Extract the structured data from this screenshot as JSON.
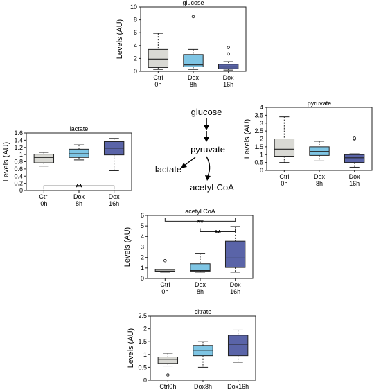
{
  "colors": {
    "ctrl_fill": "#d9d9d4",
    "dox8_fill": "#7ec5e4",
    "dox16_fill": "#5a64a8",
    "stroke": "#222222"
  },
  "pathway": {
    "glucose": "glucose",
    "pyruvate": "pyruvate",
    "lactate": "lactate",
    "acetyl_coa": "acetyl-CoA"
  },
  "chart_data": [
    {
      "id": "glucose",
      "type": "box",
      "title": "glucose",
      "ylabel": "Levels (AU)",
      "ylim": [
        0,
        10
      ],
      "yticks": [
        "0",
        "2",
        "4",
        "6",
        "8",
        "10"
      ],
      "ytick_values": [
        0,
        2,
        4,
        6,
        8,
        10
      ],
      "categories": [
        [
          "Ctrl",
          "0h"
        ],
        [
          "Dox",
          "8h"
        ],
        [
          "Dox",
          "16h"
        ]
      ],
      "boxes": [
        {
          "whislo": 0.3,
          "q1": 0.6,
          "med": 1.9,
          "q3": 3.4,
          "whishi": 5.9,
          "fliers": []
        },
        {
          "whislo": 0.3,
          "q1": 0.7,
          "med": 1.0,
          "q3": 2.6,
          "whishi": 3.4,
          "fliers": [
            8.5
          ]
        },
        {
          "whislo": 0.2,
          "q1": 0.4,
          "med": 0.7,
          "q3": 1.1,
          "whishi": 1.5,
          "fliers": [
            2.7,
            3.7
          ]
        }
      ],
      "significance": []
    },
    {
      "id": "lactate",
      "type": "box",
      "title": "lactate",
      "ylabel": "Levels (AU)",
      "ylim": [
        0,
        1.6
      ],
      "yticks": [
        "0",
        "0.2",
        "0.4",
        "0.6",
        "0.8",
        "1",
        "1.2",
        "1.4",
        "1.6"
      ],
      "ytick_values": [
        0,
        0.2,
        0.4,
        0.6,
        0.8,
        1.0,
        1.2,
        1.4,
        1.6
      ],
      "categories": [
        [
          "Ctrl",
          "0h"
        ],
        [
          "Dox",
          "8h"
        ],
        [
          "Dox",
          "16h"
        ]
      ],
      "boxes": [
        {
          "whislo": 0.68,
          "q1": 0.77,
          "med": 0.92,
          "q3": 1.01,
          "whishi": 1.06,
          "fliers": []
        },
        {
          "whislo": 0.85,
          "q1": 0.92,
          "med": 1.02,
          "q3": 1.15,
          "whishi": 1.27,
          "fliers": []
        },
        {
          "whislo": 0.55,
          "q1": 0.99,
          "med": 1.18,
          "q3": 1.36,
          "whishi": 1.45,
          "fliers": []
        }
      ],
      "significance": [
        {
          "from": 0,
          "to": 2,
          "label": "**",
          "y": 0.13
        }
      ]
    },
    {
      "id": "pyruvate",
      "type": "box",
      "title": "pyruvate",
      "ylabel": "Levels (AU)",
      "ylim": [
        0,
        4
      ],
      "yticks": [
        "0",
        "0.5",
        "1",
        "1.5",
        "2",
        "2.5",
        "3",
        "3.5",
        "4"
      ],
      "ytick_values": [
        0,
        0.5,
        1,
        1.5,
        2,
        2.5,
        3,
        3.5,
        4
      ],
      "categories": [
        [
          "Ctrl",
          "0h"
        ],
        [
          "Dox",
          "8h"
        ],
        [
          "Dox",
          "16h"
        ]
      ],
      "boxes": [
        {
          "whislo": 0.5,
          "q1": 0.9,
          "med": 1.35,
          "q3": 2.0,
          "whishi": 3.4,
          "fliers": []
        },
        {
          "whislo": 0.6,
          "q1": 0.95,
          "med": 1.2,
          "q3": 1.5,
          "whishi": 1.85,
          "fliers": []
        },
        {
          "whislo": 0.2,
          "q1": 0.5,
          "med": 0.8,
          "q3": 1.0,
          "whishi": 1.05,
          "fliers": [
            2.0,
            2.05
          ]
        }
      ],
      "significance": []
    },
    {
      "id": "acetyl-coa",
      "type": "box",
      "title": "acetyl CoA",
      "ylabel": "Levels (AU)",
      "ylim": [
        0,
        6
      ],
      "yticks": [
        "0",
        "1",
        "2",
        "3",
        "4",
        "5",
        "6"
      ],
      "ytick_values": [
        0,
        1,
        2,
        3,
        4,
        5,
        6
      ],
      "categories": [
        [
          "Ctrl",
          "0h"
        ],
        [
          "Dox",
          "8h"
        ],
        [
          "Dox",
          "16h"
        ]
      ],
      "boxes": [
        {
          "whislo": 0.6,
          "q1": 0.65,
          "med": 0.7,
          "q3": 0.85,
          "whishi": 0.85,
          "fliers": [
            1.7
          ]
        },
        {
          "whislo": 0.6,
          "q1": 0.7,
          "med": 0.75,
          "q3": 1.4,
          "whishi": 2.4,
          "fliers": []
        },
        {
          "whislo": 0.6,
          "q1": 1.05,
          "med": 1.95,
          "q3": 3.55,
          "whishi": 4.95,
          "fliers": []
        }
      ],
      "significance": [
        {
          "from": 0,
          "to": 2,
          "label": "**",
          "y": 5.45
        },
        {
          "from": 1,
          "to": 2,
          "label": "**",
          "y": 4.45
        }
      ]
    },
    {
      "id": "citrate",
      "type": "box",
      "title": "citrate",
      "ylabel": "Levels (AU)",
      "ylim": [
        0,
        2.5
      ],
      "yticks": [
        "0",
        "0.5",
        "1",
        "1.5",
        "2",
        "2.5"
      ],
      "ytick_values": [
        0,
        0.5,
        1,
        1.5,
        2,
        2.5
      ],
      "categories": [
        [
          "Ctrl0h"
        ],
        [
          "Dox8h"
        ],
        [
          "Dox16h"
        ]
      ],
      "boxes": [
        {
          "whislo": 0.55,
          "q1": 0.65,
          "med": 0.8,
          "q3": 0.9,
          "whishi": 1.05,
          "fliers": [
            0.2
          ]
        },
        {
          "whislo": 0.5,
          "q1": 0.95,
          "med": 1.15,
          "q3": 1.35,
          "whishi": 1.5,
          "fliers": []
        },
        {
          "whislo": 0.7,
          "q1": 0.95,
          "med": 1.4,
          "q3": 1.75,
          "whishi": 1.95,
          "fliers": []
        }
      ],
      "significance": []
    }
  ]
}
